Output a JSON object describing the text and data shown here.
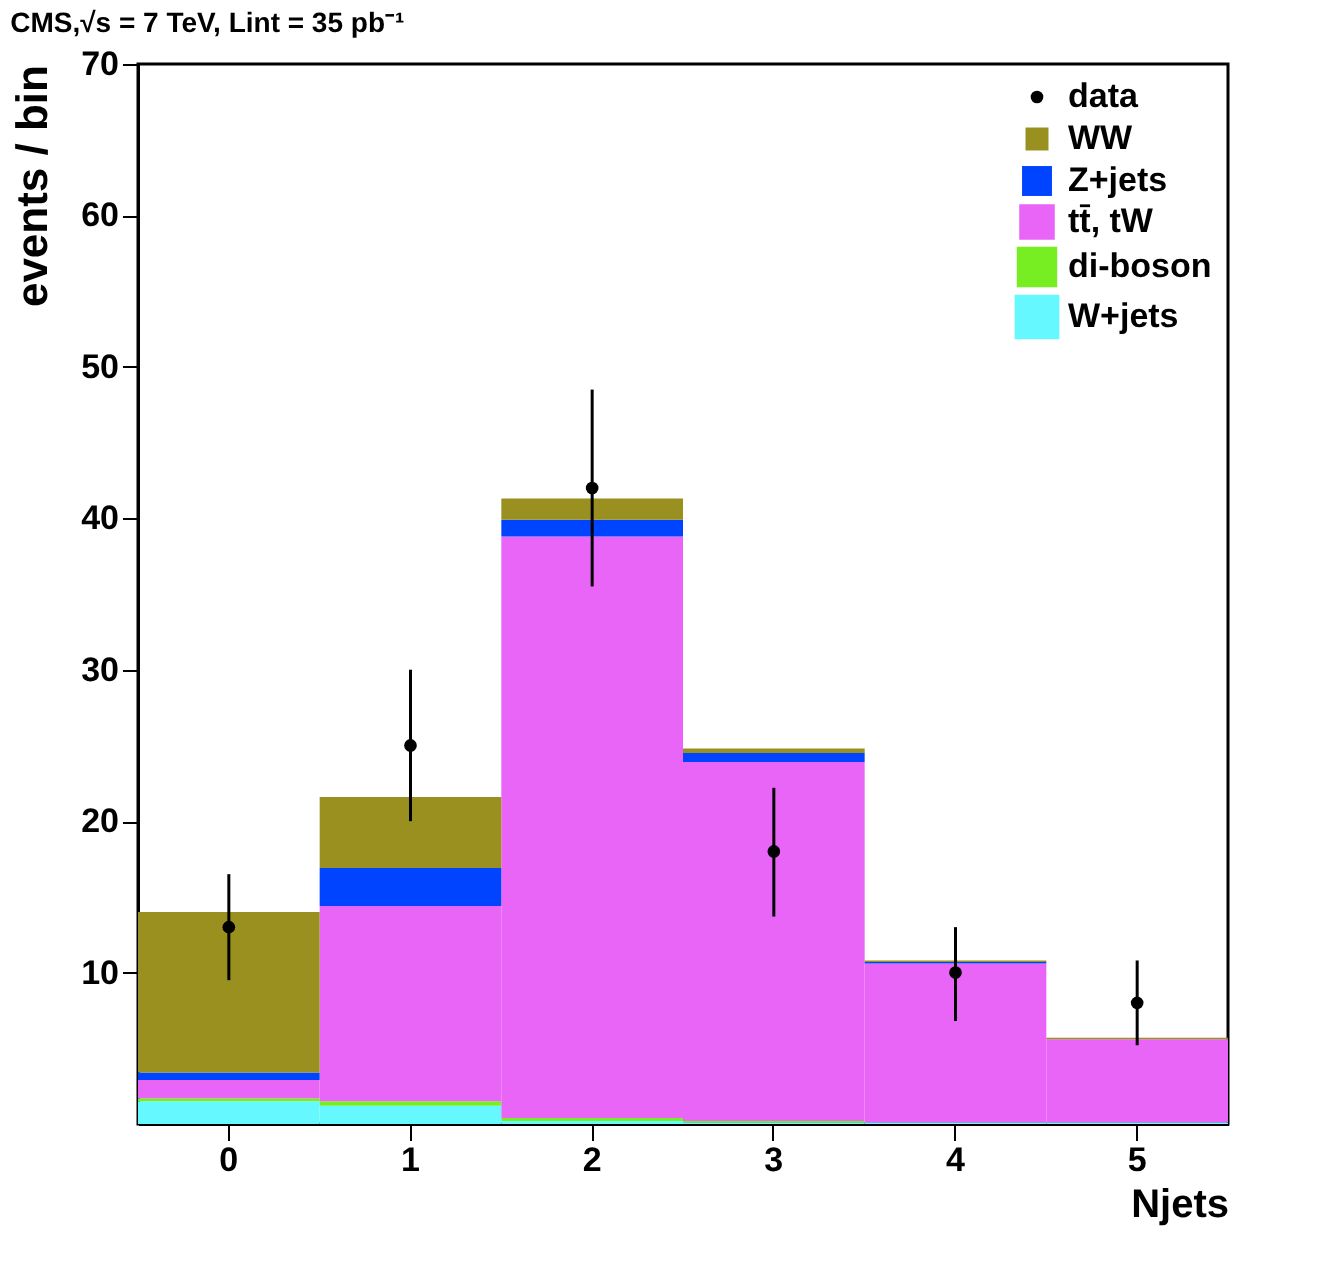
{
  "chart_data": {
    "type": "bar",
    "stacked": true,
    "title": "CMS,√s = 7 TeV, Lint = 35 pb⁻¹",
    "xlabel": "Njets",
    "ylabel": "events / bin",
    "categories": [
      "0",
      "1",
      "2",
      "3",
      "4",
      "5"
    ],
    "series": [
      {
        "name": "W+jets",
        "color": "#66f8ff",
        "values": [
          1.5,
          1.2,
          0.2,
          0.1,
          0.1,
          0.1
        ]
      },
      {
        "name": "di-boson",
        "color": "#77ee22",
        "values": [
          0.2,
          0.3,
          0.2,
          0.1,
          0.0,
          0.0
        ]
      },
      {
        "name": "tt̄, tW",
        "color": "#e965f8",
        "values": [
          1.2,
          12.9,
          38.4,
          23.7,
          10.5,
          5.5
        ]
      },
      {
        "name": "Z+jets",
        "color": "#0044ff",
        "values": [
          0.5,
          2.5,
          1.1,
          0.6,
          0.1,
          0.0
        ]
      },
      {
        "name": "WW",
        "color": "#999020",
        "values": [
          10.6,
          4.7,
          1.4,
          0.3,
          0.1,
          0.1
        ]
      },
      {
        "name": "data",
        "type": "scatter",
        "marker": "circle",
        "color": "#000000",
        "x": [
          "0",
          "1",
          "2",
          "3",
          "4",
          "5"
        ],
        "values": [
          13,
          25,
          42,
          18,
          10,
          8
        ],
        "errors": [
          [
            9.5,
            16.5
          ],
          [
            20,
            30
          ],
          [
            35.5,
            48.5
          ],
          [
            13.7,
            22.2
          ],
          [
            6.8,
            13.0
          ],
          [
            5.2,
            10.8
          ]
        ]
      }
    ],
    "ylim": [
      0,
      70
    ],
    "yticks": [
      10,
      20,
      30,
      40,
      50,
      60,
      70
    ],
    "legend": "top right"
  }
}
